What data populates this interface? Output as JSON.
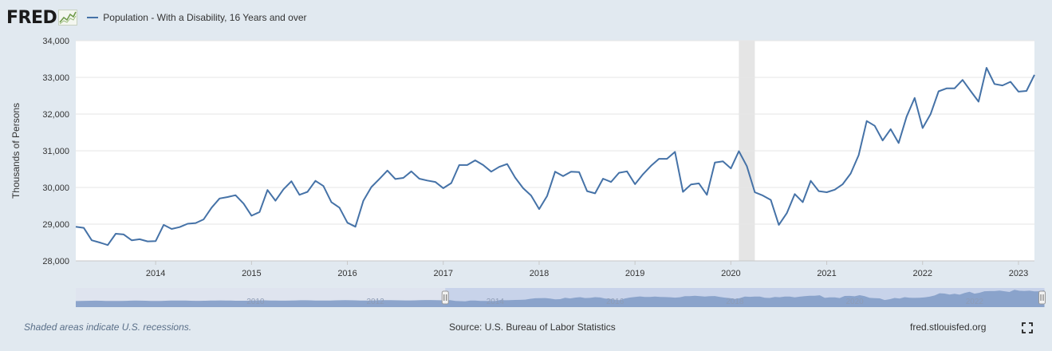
{
  "header": {
    "logo_text": "FRED",
    "legend_label": "Population - With a Disability, 16 Years and over"
  },
  "footer": {
    "recession_note": "Shaded areas indicate U.S. recessions.",
    "source": "Source: U.S. Bureau of Labor Statistics",
    "site": "fred.stlouisfed.org"
  },
  "colors": {
    "series": "#4572a7",
    "recession": "#e5e5e5",
    "navigator_fill": "#7f9ac6",
    "navigator_selected": "#c8d3ea",
    "background": "#e1e9f0"
  },
  "icons": {
    "logo_chart": "fred-line-chart-icon",
    "fullscreen": "fullscreen-expand-icon"
  },
  "chart_data": {
    "type": "line",
    "title": "",
    "xlabel": "",
    "ylabel": "Thousands of Persons",
    "ylim": [
      28000,
      34000
    ],
    "yticks": [
      28000,
      29000,
      30000,
      31000,
      32000,
      33000,
      34000
    ],
    "ytick_labels": [
      "28,000",
      "29,000",
      "30,000",
      "31,000",
      "32,000",
      "33,000",
      "34,000"
    ],
    "xlim": [
      "2013-03",
      "2023-03"
    ],
    "xtick_labels": [
      "2014",
      "2015",
      "2016",
      "2017",
      "2018",
      "2019",
      "2020",
      "2021",
      "2022",
      "2023"
    ],
    "grid": "horizontal",
    "legend": "top-left",
    "recessions": [
      {
        "start": "2020-02",
        "end": "2020-04"
      }
    ],
    "series": [
      {
        "name": "Population - With a Disability, 16 Years and over",
        "start": "2013-03",
        "frequency": "monthly",
        "values": [
          28930,
          28900,
          28560,
          28500,
          28430,
          28740,
          28720,
          28560,
          28590,
          28530,
          28540,
          28980,
          28870,
          28920,
          29010,
          29030,
          29130,
          29450,
          29700,
          29740,
          29790,
          29560,
          29230,
          29330,
          29930,
          29640,
          29950,
          30170,
          29800,
          29880,
          30180,
          30040,
          29600,
          29450,
          29040,
          28930,
          29640,
          30010,
          30230,
          30460,
          30230,
          30260,
          30440,
          30240,
          30190,
          30150,
          29980,
          30120,
          30610,
          30610,
          30740,
          30610,
          30430,
          30560,
          30640,
          30270,
          29980,
          29780,
          29410,
          29770,
          30430,
          30310,
          30430,
          30420,
          29900,
          29840,
          30240,
          30150,
          30400,
          30440,
          30090,
          30360,
          30590,
          30780,
          30780,
          30970,
          29880,
          30080,
          30110,
          29800,
          30680,
          30710,
          30520,
          30990,
          30580,
          29870,
          29780,
          29660,
          28980,
          29300,
          29820,
          29600,
          30180,
          29900,
          29870,
          29940,
          30090,
          30380,
          30880,
          31810,
          31680,
          31280,
          31590,
          31210,
          31930,
          32440,
          31620,
          32000,
          32620,
          32700,
          32700,
          32930,
          32630,
          32340,
          33260,
          32820,
          32780,
          32880,
          32610,
          32630,
          33070
        ]
      }
    ],
    "navigator": {
      "xlim": [
        "2007",
        "2023"
      ],
      "labels": [
        "2010",
        "2012",
        "2014",
        "2016",
        "2018",
        "2020",
        "2022"
      ],
      "selected_range": [
        "2013-03",
        "2023-03"
      ]
    }
  }
}
